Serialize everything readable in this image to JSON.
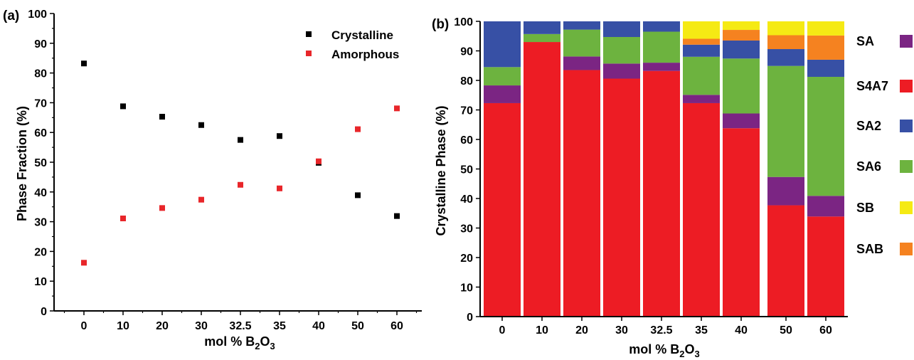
{
  "chart_data": [
    {
      "panel_label": "(a)",
      "type": "scatter",
      "categories": [
        "0",
        "10",
        "20",
        "30",
        "32.5",
        "35",
        "40",
        "50",
        "60"
      ],
      "series": [
        {
          "name": "Crystalline",
          "color": "#000000",
          "values": [
            83.2,
            68.8,
            65.3,
            62.5,
            57.5,
            58.8,
            49.8,
            38.9,
            31.9
          ]
        },
        {
          "name": "Amorphous",
          "color": "#e8262a",
          "values": [
            16.2,
            31.1,
            34.6,
            37.4,
            42.4,
            41.2,
            50.3,
            61.1,
            68.1
          ]
        }
      ],
      "xlabel": {
        "main": "mol % B",
        "sub1": "2",
        "mid": "O",
        "sub2": "3"
      },
      "ylabel": "Phase Fraction (%)",
      "ylim": [
        0,
        100
      ],
      "yticks": [
        "0",
        "10",
        "20",
        "30",
        "40",
        "50",
        "60",
        "70",
        "80",
        "90",
        "100"
      ],
      "legend_position": "top-right",
      "grid": false
    },
    {
      "panel_label": "(b)",
      "type": "bar",
      "stacked": true,
      "categories": [
        "0",
        "10",
        "20",
        "30",
        "32.5",
        "35",
        "40",
        "50",
        "60"
      ],
      "series": [
        {
          "name": "S4A7",
          "color": "#ed1c24",
          "values": [
            72.3,
            93.0,
            83.5,
            80.6,
            83.2,
            72.3,
            63.8,
            37.7,
            33.9
          ]
        },
        {
          "name": "SA",
          "color": "#7b2583",
          "values": [
            6.0,
            0,
            4.6,
            5.1,
            2.8,
            2.8,
            5.0,
            9.6,
            7.0
          ]
        },
        {
          "name": "SA6",
          "color": "#6db33f",
          "values": [
            6.2,
            2.7,
            9.1,
            9.0,
            10.5,
            12.9,
            18.6,
            37.6,
            40.3
          ]
        },
        {
          "name": "SA2",
          "color": "#3750a5",
          "values": [
            15.5,
            4.3,
            2.8,
            5.3,
            3.5,
            4.1,
            6.1,
            5.7,
            5.8
          ]
        },
        {
          "name": "SAB",
          "color": "#f58220",
          "values": [
            0,
            0,
            0,
            0,
            0,
            2.0,
            3.6,
            4.7,
            8.2
          ]
        },
        {
          "name": "SB",
          "color": "#f5ea14",
          "values": [
            0,
            0,
            0,
            0,
            0,
            5.9,
            2.9,
            4.7,
            4.8
          ]
        }
      ],
      "legend_order": [
        "SA",
        "S4A7",
        "SA2",
        "SA6",
        "SB",
        "SAB"
      ],
      "xlabel": {
        "main": "mol % B",
        "sub1": "2",
        "mid": "O",
        "sub2": "3"
      },
      "ylabel": "Crystalline Phase (%)",
      "ylim": [
        0,
        100
      ],
      "yticks": [
        "0",
        "10",
        "20",
        "30",
        "40",
        "50",
        "60",
        "70",
        "80",
        "90",
        "100"
      ],
      "legend_position": "right",
      "grid": false
    }
  ]
}
